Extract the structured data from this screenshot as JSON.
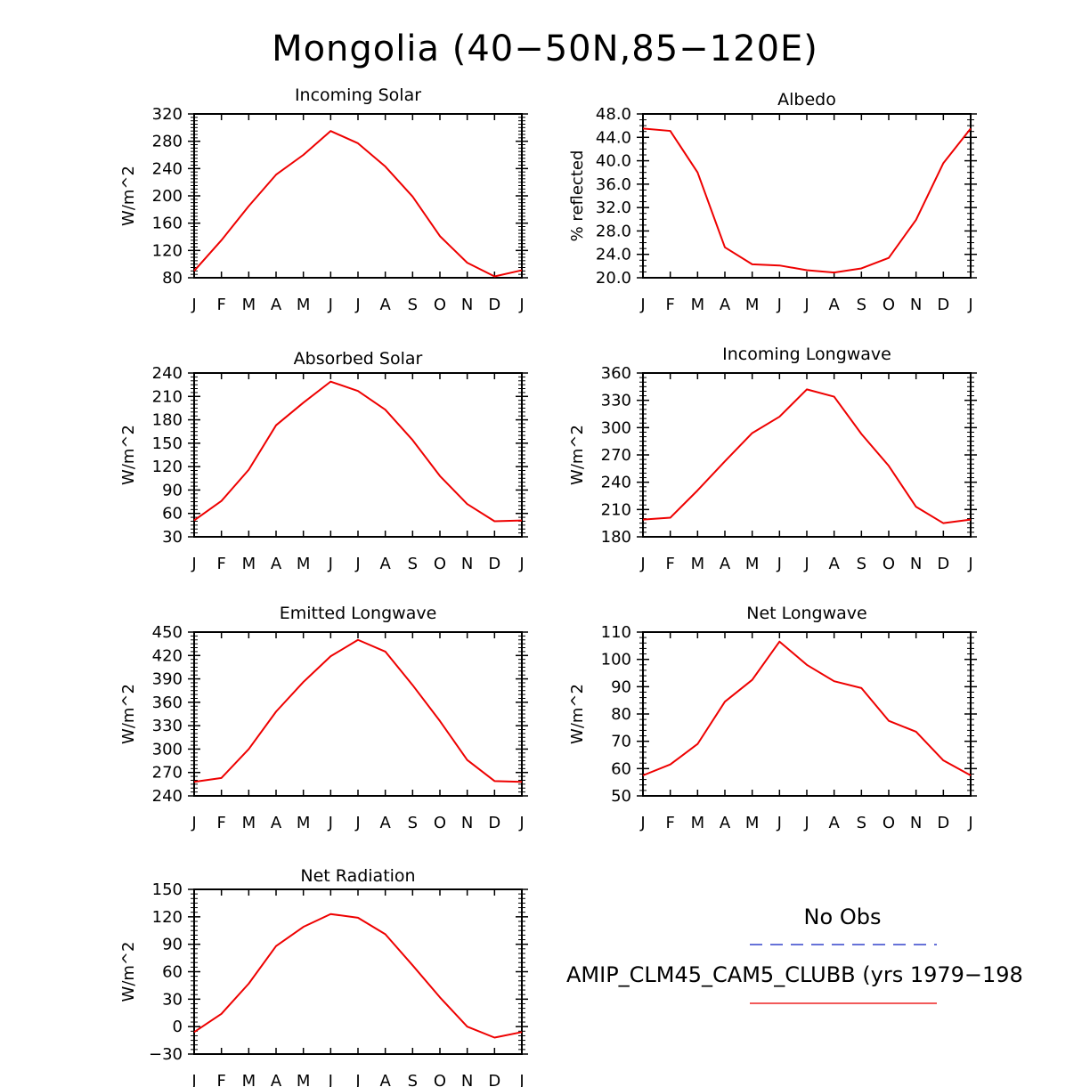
{
  "figure_title": "Mongolia (40−50N,85−120E)",
  "months": [
    "J",
    "F",
    "M",
    "A",
    "M",
    "J",
    "J",
    "A",
    "S",
    "O",
    "N",
    "D",
    "J"
  ],
  "legend": {
    "obs_label": "No Obs",
    "obs_color": "#3344cc",
    "model_label": "AMIP_CLM45_CAM5_CLUBB (yrs 1979−198",
    "model_color": "#ee2222"
  },
  "colors": {
    "series": "#ee0000",
    "axis": "#000000"
  },
  "chart_data": [
    {
      "type": "line",
      "title": "Incoming Solar",
      "ylabel": "W/m^2",
      "ylim": [
        80,
        320
      ],
      "yticks": [
        "80",
        "120",
        "160",
        "200",
        "240",
        "280",
        "320"
      ],
      "minor": 8,
      "series": [
        {
          "name": "AMIP_CLM45_CAM5_CLUBB",
          "values": [
            90,
            135,
            185,
            231,
            260,
            295,
            277,
            243,
            199,
            141,
            102,
            82,
            91
          ]
        }
      ]
    },
    {
      "type": "line",
      "title": "Albedo",
      "ylabel": "% reflected",
      "ylim": [
        20,
        48
      ],
      "yticks": [
        "20.0",
        "24.0",
        "28.0",
        "32.0",
        "36.0",
        "40.0",
        "44.0",
        "48.0"
      ],
      "minor": 4,
      "series": [
        {
          "name": "AMIP_CLM45_CAM5_CLUBB",
          "values": [
            45.5,
            45.1,
            38.0,
            25.2,
            22.3,
            22.1,
            21.3,
            20.9,
            21.6,
            23.4,
            29.9,
            39.6,
            45.5
          ]
        }
      ]
    },
    {
      "type": "line",
      "title": "Absorbed Solar",
      "ylabel": "W/m^2",
      "ylim": [
        30,
        240
      ],
      "yticks": [
        "30",
        "60",
        "90",
        "120",
        "150",
        "180",
        "210",
        "240"
      ],
      "minor": 6,
      "series": [
        {
          "name": "AMIP_CLM45_CAM5_CLUBB",
          "values": [
            51,
            76,
            116,
            173,
            202,
            229,
            217,
            193,
            154,
            108,
            72,
            50,
            51
          ]
        }
      ]
    },
    {
      "type": "line",
      "title": "Incoming Longwave",
      "ylabel": "W/m^2",
      "ylim": [
        180,
        360
      ],
      "yticks": [
        "180",
        "210",
        "240",
        "270",
        "300",
        "330",
        "360"
      ],
      "minor": 6,
      "series": [
        {
          "name": "AMIP_CLM45_CAM5_CLUBB",
          "values": [
            199,
            201,
            231,
            263,
            294,
            312,
            342,
            334,
            293,
            258,
            213,
            195,
            199
          ]
        }
      ]
    },
    {
      "type": "line",
      "title": "Emitted Longwave",
      "ylabel": "W/m^2",
      "ylim": [
        240,
        450
      ],
      "yticks": [
        "240",
        "270",
        "300",
        "330",
        "360",
        "390",
        "420",
        "450"
      ],
      "minor": 6,
      "series": [
        {
          "name": "AMIP_CLM45_CAM5_CLUBB",
          "values": [
            258,
            263,
            300,
            348,
            386,
            419,
            440,
            425,
            382,
            336,
            286,
            259,
            258
          ]
        }
      ]
    },
    {
      "type": "line",
      "title": "Net Longwave",
      "ylabel": "W/m^2",
      "ylim": [
        50,
        110
      ],
      "yticks": [
        "50",
        "60",
        "70",
        "80",
        "90",
        "100",
        "110"
      ],
      "minor": 5,
      "series": [
        {
          "name": "AMIP_CLM45_CAM5_CLUBB",
          "values": [
            57.5,
            61.5,
            69,
            84.5,
            92.5,
            106.5,
            98,
            92,
            89.5,
            77.5,
            73.5,
            63,
            57.5
          ]
        }
      ]
    },
    {
      "type": "line",
      "title": "Net Radiation",
      "ylabel": "W/m^2",
      "ylim": [
        -30,
        150
      ],
      "yticks": [
        "−30",
        "0",
        "30",
        "60",
        "90",
        "120",
        "150"
      ],
      "minor": 6,
      "series": [
        {
          "name": "AMIP_CLM45_CAM5_CLUBB",
          "values": [
            -6,
            14,
            47,
            88,
            109,
            123,
            119,
            101,
            67,
            32,
            0,
            -12,
            -6
          ]
        }
      ]
    }
  ]
}
